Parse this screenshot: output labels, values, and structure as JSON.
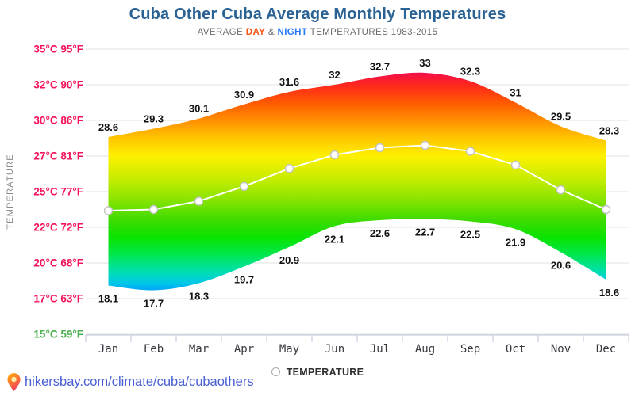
{
  "page": {
    "title": "Cuba Other Cuba Average Monthly Temperatures",
    "subtitle": {
      "prefix": "AVERAGE",
      "day": "DAY",
      "amp": "&",
      "night": "NIGHT",
      "suffix": "TEMPERATURES 1983-2015"
    }
  },
  "legend": {
    "label": "TEMPERATURE"
  },
  "footer": {
    "url": "hikersbay.com/climate/cuba/cubaothers"
  },
  "colors": {
    "title": "#2b6294",
    "subtitle_text": "#6b6b6b",
    "day_accent": "#f75513",
    "night_accent": "#2979ff",
    "y_axis_labels": "#f5145a",
    "y_axis_label_low": "#4caf50",
    "month_labels": "#37373f",
    "value_labels": "#111111",
    "grid": "#e2e2e2",
    "axis_line": "#bcc6d8",
    "average_line": "#ffffff",
    "marker_stroke": "#c3c3c3",
    "link": "#4a5fd6"
  },
  "chart_data": {
    "type": "area",
    "title": "Cuba Other Cuba Average Monthly Temperatures",
    "subtitle": "AVERAGE DAY & NIGHT TEMPERATURES 1983-2015",
    "categories": [
      "Jan",
      "Feb",
      "Mar",
      "Apr",
      "May",
      "Jun",
      "Jul",
      "Aug",
      "Sep",
      "Oct",
      "Nov",
      "Dec"
    ],
    "series": [
      {
        "name": "DAY",
        "values": [
          28.6,
          29.3,
          30.1,
          30.9,
          31.6,
          32,
          32.7,
          33,
          32.3,
          31,
          29.5,
          28.3
        ]
      },
      {
        "name": "NIGHT",
        "values": [
          18.1,
          17.7,
          18.3,
          19.7,
          20.9,
          22.1,
          22.6,
          22.7,
          22.5,
          21.9,
          20.6,
          18.6
        ]
      },
      {
        "name": "TEMPERATURE",
        "note": "white average line with circle markers",
        "values": [
          23.4,
          23.5,
          24.2,
          25.3,
          26.3,
          27.1,
          27.7,
          27.9,
          27.4,
          26.5,
          25.1,
          23.5
        ]
      }
    ],
    "ylabel": "TEMPERATURE",
    "xlabel": "",
    "ylim": [
      15,
      35
    ],
    "grid": true,
    "legend_position": "bottom",
    "y_ticks": [
      {
        "c": 35,
        "label": "35°C 95°F"
      },
      {
        "c": 32,
        "label": "32°C 90°F"
      },
      {
        "c": 30,
        "label": "30°C 86°F"
      },
      {
        "c": 27,
        "label": "27°C 81°F"
      },
      {
        "c": 25,
        "label": "25°C 77°F"
      },
      {
        "c": 22,
        "label": "22°C 72°F"
      },
      {
        "c": 20,
        "label": "20°C 68°F"
      },
      {
        "c": 17,
        "label": "17°C 63°F"
      },
      {
        "c": 15,
        "label": "15°C 59°F"
      }
    ],
    "fill": "vertical rainbow temperature gradient between day and night curves",
    "gradient_stops": [
      {
        "offset": 0.0,
        "color": "#d4004d"
      },
      {
        "offset": 0.08,
        "color": "#f20c4e"
      },
      {
        "offset": 0.13,
        "color": "#ff2a1a"
      },
      {
        "offset": 0.19,
        "color": "#ff5c00"
      },
      {
        "offset": 0.25,
        "color": "#ff8f00"
      },
      {
        "offset": 0.31,
        "color": "#ffc400"
      },
      {
        "offset": 0.375,
        "color": "#fdf000"
      },
      {
        "offset": 0.46,
        "color": "#c3ec00"
      },
      {
        "offset": 0.53,
        "color": "#86e400"
      },
      {
        "offset": 0.6,
        "color": "#3ddb00"
      },
      {
        "offset": 0.66,
        "color": "#0ae300"
      },
      {
        "offset": 0.72,
        "color": "#00e74d"
      },
      {
        "offset": 0.78,
        "color": "#00dfae"
      },
      {
        "offset": 0.82,
        "color": "#00c8e8"
      },
      {
        "offset": 0.86,
        "color": "#0090ff"
      },
      {
        "offset": 0.9,
        "color": "#0057ff"
      },
      {
        "offset": 1.0,
        "color": "#002ee0"
      }
    ]
  }
}
